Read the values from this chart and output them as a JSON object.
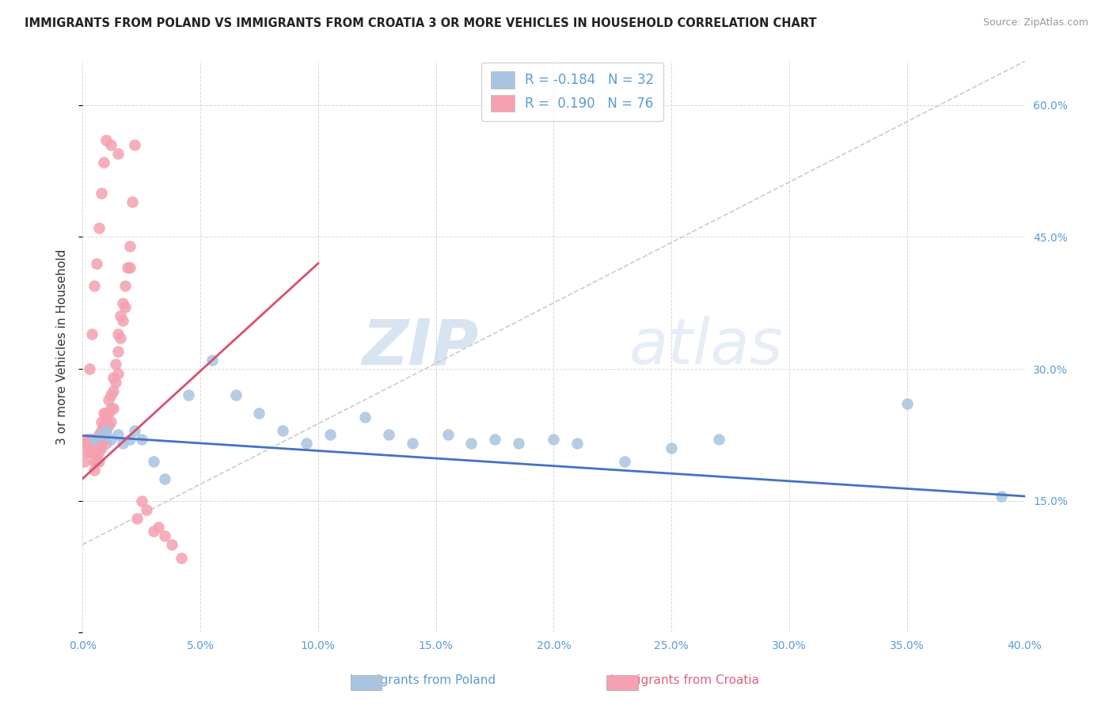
{
  "title": "IMMIGRANTS FROM POLAND VS IMMIGRANTS FROM CROATIA 3 OR MORE VEHICLES IN HOUSEHOLD CORRELATION CHART",
  "source": "Source: ZipAtlas.com",
  "ylabel_label": "3 or more Vehicles in Household",
  "legend_label1": "Immigrants from Poland",
  "legend_label2": "Immigrants from Croatia",
  "R_poland": -0.184,
  "N_poland": 32,
  "R_croatia": 0.19,
  "N_croatia": 76,
  "xmin": 0.0,
  "xmax": 0.4,
  "ymin": 0.0,
  "ymax": 0.65,
  "color_poland": "#a8c4e0",
  "color_croatia": "#f4a0b0",
  "line_color_poland": "#4472c4",
  "line_color_croatia": "#d94f6e",
  "diagonal_color": "#cccccc",
  "background_color": "#ffffff",
  "grid_color": "#d8d8d8",
  "watermark_zip": "ZIP",
  "watermark_atlas": "atlas",
  "poland_x": [
    0.005,
    0.008,
    0.01,
    0.012,
    0.015,
    0.017,
    0.02,
    0.022,
    0.025,
    0.03,
    0.035,
    0.045,
    0.055,
    0.065,
    0.075,
    0.085,
    0.095,
    0.105,
    0.12,
    0.13,
    0.14,
    0.155,
    0.165,
    0.175,
    0.185,
    0.2,
    0.21,
    0.23,
    0.25,
    0.27,
    0.35,
    0.39
  ],
  "poland_y": [
    0.22,
    0.225,
    0.23,
    0.22,
    0.225,
    0.215,
    0.22,
    0.23,
    0.22,
    0.195,
    0.175,
    0.27,
    0.31,
    0.27,
    0.25,
    0.23,
    0.215,
    0.225,
    0.245,
    0.225,
    0.215,
    0.225,
    0.215,
    0.22,
    0.215,
    0.22,
    0.215,
    0.195,
    0.21,
    0.22,
    0.26,
    0.155
  ],
  "croatia_x": [
    0.001,
    0.001,
    0.002,
    0.002,
    0.003,
    0.003,
    0.003,
    0.004,
    0.004,
    0.004,
    0.005,
    0.005,
    0.005,
    0.005,
    0.006,
    0.006,
    0.006,
    0.007,
    0.007,
    0.007,
    0.007,
    0.008,
    0.008,
    0.008,
    0.008,
    0.009,
    0.009,
    0.009,
    0.01,
    0.01,
    0.01,
    0.01,
    0.011,
    0.011,
    0.011,
    0.012,
    0.012,
    0.012,
    0.013,
    0.013,
    0.013,
    0.014,
    0.014,
    0.015,
    0.015,
    0.015,
    0.016,
    0.016,
    0.017,
    0.017,
    0.018,
    0.018,
    0.019,
    0.02,
    0.02,
    0.021,
    0.022,
    0.023,
    0.025,
    0.027,
    0.03,
    0.032,
    0.035,
    0.038,
    0.042,
    0.002,
    0.003,
    0.004,
    0.005,
    0.006,
    0.007,
    0.008,
    0.009,
    0.01,
    0.012,
    0.015
  ],
  "croatia_y": [
    0.215,
    0.195,
    0.215,
    0.205,
    0.22,
    0.215,
    0.205,
    0.22,
    0.21,
    0.205,
    0.215,
    0.21,
    0.195,
    0.185,
    0.215,
    0.205,
    0.195,
    0.225,
    0.215,
    0.205,
    0.195,
    0.24,
    0.23,
    0.22,
    0.21,
    0.25,
    0.235,
    0.22,
    0.25,
    0.245,
    0.23,
    0.215,
    0.265,
    0.25,
    0.235,
    0.27,
    0.255,
    0.24,
    0.29,
    0.275,
    0.255,
    0.305,
    0.285,
    0.34,
    0.32,
    0.295,
    0.36,
    0.335,
    0.375,
    0.355,
    0.395,
    0.37,
    0.415,
    0.44,
    0.415,
    0.49,
    0.555,
    0.13,
    0.15,
    0.14,
    0.115,
    0.12,
    0.11,
    0.1,
    0.085,
    0.22,
    0.3,
    0.34,
    0.395,
    0.42,
    0.46,
    0.5,
    0.535,
    0.56,
    0.555,
    0.545
  ]
}
